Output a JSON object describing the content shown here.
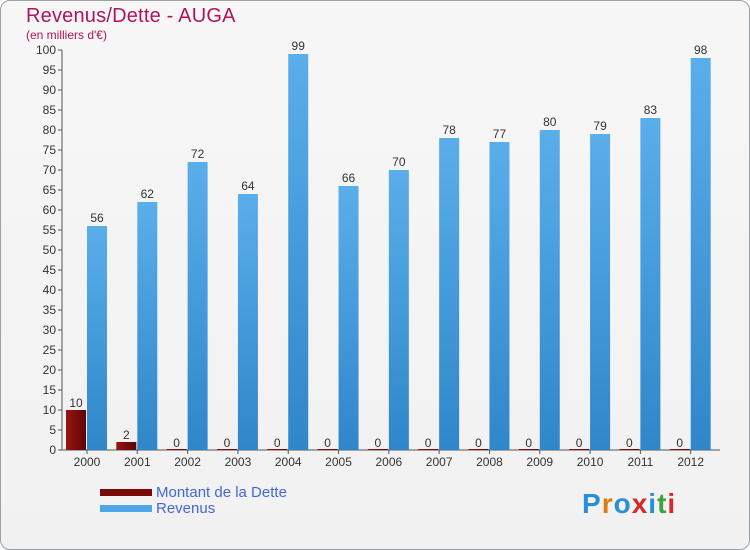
{
  "header": {
    "title": "Revenus/Dette - AUGA",
    "subtitle": "(en milliers d'€)"
  },
  "colors": {
    "title": "#b0145a",
    "debt": "#7a0a0a",
    "revenue": "#4ea6e6"
  },
  "chart_data": {
    "type": "bar",
    "title": "Revenus/Dette - AUGA",
    "subtitle": "(en milliers d'€)",
    "xlabel": "",
    "ylabel": "",
    "ylim": [
      0,
      100
    ],
    "yticks": [
      0,
      5,
      10,
      15,
      20,
      25,
      30,
      35,
      40,
      45,
      50,
      55,
      60,
      65,
      70,
      75,
      80,
      85,
      90,
      95,
      100
    ],
    "grid": false,
    "legend_position": "bottom-left",
    "categories": [
      "2000",
      "2001",
      "2002",
      "2003",
      "2004",
      "2005",
      "2006",
      "2007",
      "2008",
      "2009",
      "2010",
      "2011",
      "2012"
    ],
    "series": [
      {
        "name": "Montant de la Dette",
        "color": "#7a0a0a",
        "values": [
          10,
          2,
          0,
          0,
          0,
          0,
          0,
          0,
          0,
          0,
          0,
          0,
          0
        ]
      },
      {
        "name": "Revenus",
        "color": "#4ea6e6",
        "values": [
          56,
          62,
          72,
          64,
          99,
          66,
          70,
          78,
          77,
          80,
          79,
          83,
          98
        ]
      }
    ]
  },
  "legend": {
    "debt_label": "Montant de la Dette",
    "revenue_label": "Revenus"
  },
  "logo": {
    "letters": [
      "P",
      "r",
      "o",
      "x",
      "i",
      "t",
      "i"
    ],
    "colors": [
      "#2a8fd6",
      "#e07b12",
      "#2a8fd6",
      "#d62a2a",
      "#2a8fd6",
      "#3aa53a",
      "#d62a2a"
    ]
  }
}
